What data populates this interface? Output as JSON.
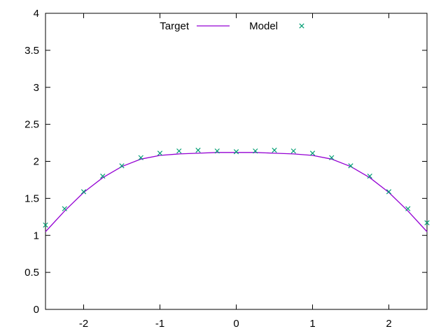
{
  "chart_data": {
    "type": "line",
    "title": "",
    "xlabel": "",
    "ylabel": "",
    "xlim": [
      -2.5,
      2.5
    ],
    "ylim": [
      0,
      4
    ],
    "grid": false,
    "legend_placement": "top-center",
    "x_ticks": [
      "-2",
      "-1",
      "0",
      "1",
      "2"
    ],
    "y_ticks": [
      "0",
      "0.5",
      "1",
      "1.5",
      "2",
      "2.5",
      "3",
      "3.5",
      "4"
    ],
    "series": [
      {
        "name": "Target",
        "style": "line",
        "color": "#9400d3",
        "x": [
          -2.5,
          -2.25,
          -2.0,
          -1.75,
          -1.5,
          -1.25,
          -1.0,
          -0.75,
          -0.5,
          -0.25,
          0.0,
          0.25,
          0.5,
          0.75,
          1.0,
          1.25,
          1.5,
          1.75,
          2.0,
          2.25,
          2.5
        ],
        "y": [
          1.05,
          1.33,
          1.58,
          1.78,
          1.93,
          2.03,
          2.08,
          2.1,
          2.11,
          2.12,
          2.12,
          2.12,
          2.11,
          2.1,
          2.08,
          2.03,
          1.93,
          1.78,
          1.58,
          1.33,
          1.05
        ]
      },
      {
        "name": "Model",
        "style": "points",
        "marker": "x",
        "color": "#009e73",
        "x": [
          -2.5,
          -2.25,
          -2.0,
          -1.75,
          -1.5,
          -1.25,
          -1.0,
          -0.75,
          -0.5,
          -0.25,
          0.0,
          0.25,
          0.5,
          0.75,
          1.0,
          1.25,
          1.5,
          1.75,
          2.0,
          2.25,
          2.5
        ],
        "y": [
          1.14,
          1.36,
          1.59,
          1.8,
          1.94,
          2.05,
          2.11,
          2.14,
          2.15,
          2.14,
          2.13,
          2.14,
          2.15,
          2.14,
          2.11,
          2.05,
          1.94,
          1.8,
          1.59,
          1.36,
          1.17
        ]
      }
    ]
  }
}
